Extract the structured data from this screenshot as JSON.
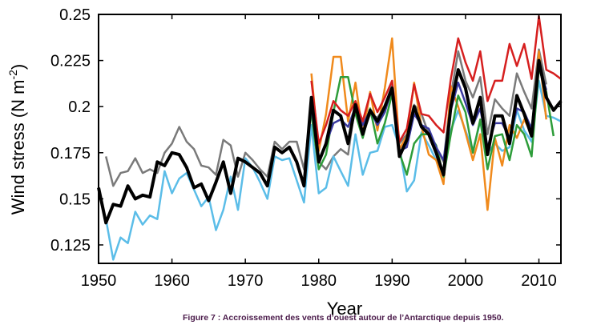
{
  "caption": "Figure 7 : Accroissement des vents d’ouest autour de l’Antarctique depuis 1950.",
  "chart_data": {
    "type": "line",
    "xlabel": "Year",
    "ylabel": "Wind stress (N m-2)",
    "ylabel_parts": {
      "main": "Wind stress (N m",
      "sup": "-2",
      "end": ")"
    },
    "xlim": [
      1950,
      2013
    ],
    "ylim": [
      0.115,
      0.25
    ],
    "xticks": [
      1950,
      1960,
      1970,
      1980,
      1990,
      2000,
      2010
    ],
    "yticks": [
      0.125,
      0.15,
      0.175,
      0.2,
      0.225,
      0.25
    ],
    "ytick_labels": [
      "0.125",
      "0.15",
      "0.175",
      "0.2",
      "0.225",
      "0.25"
    ],
    "grid": false,
    "legend": "none",
    "series": [
      {
        "color": "#7a7a7a",
        "width": 2.5,
        "x": [
          1951,
          1952,
          1953,
          1954,
          1955,
          1956,
          1957,
          1958,
          1959,
          1960,
          1961,
          1962,
          1963,
          1964,
          1965,
          1966,
          1967,
          1968,
          1969,
          1970,
          1971,
          1972,
          1973,
          1974,
          1975,
          1976,
          1977,
          1978,
          1979,
          1980,
          1981,
          1982,
          1983,
          1984,
          1985,
          1986,
          1987,
          1988,
          1989,
          1990,
          1991,
          1992,
          1993,
          1994,
          1995,
          1996,
          1997,
          1998,
          1999,
          2000,
          2001,
          2002,
          2003,
          2004,
          2005,
          2006,
          2007,
          2008,
          2009,
          2010,
          2011
        ],
        "y": [
          0.173,
          0.157,
          0.164,
          0.165,
          0.172,
          0.164,
          0.166,
          0.164,
          0.175,
          0.18,
          0.189,
          0.181,
          0.177,
          0.168,
          0.167,
          0.163,
          0.182,
          0.179,
          0.162,
          0.175,
          0.171,
          0.166,
          0.162,
          0.181,
          0.177,
          0.181,
          0.181,
          0.166,
          0.201,
          0.17,
          0.166,
          0.173,
          0.177,
          0.174,
          0.202,
          0.185,
          0.196,
          0.194,
          0.2,
          0.212,
          0.18,
          0.185,
          0.201,
          0.196,
          0.185,
          0.178,
          0.17,
          0.206,
          0.23,
          0.214,
          0.205,
          0.216,
          0.185,
          0.204,
          0.199,
          0.195,
          0.218,
          0.208,
          0.199,
          0.231,
          0.212
        ]
      },
      {
        "color": "#5bbde8",
        "width": 2.5,
        "x": [
          1951,
          1952,
          1953,
          1954,
          1955,
          1956,
          1957,
          1958,
          1959,
          1960,
          1961,
          1962,
          1963,
          1964,
          1965,
          1966,
          1967,
          1968,
          1969,
          1970,
          1971,
          1972,
          1973,
          1974,
          1975,
          1976,
          1977,
          1978,
          1979,
          1980,
          1981,
          1982,
          1983,
          1984,
          1985,
          1986,
          1987,
          1988,
          1989,
          1990,
          1991,
          1992,
          1993,
          1994,
          1995,
          1996,
          1997,
          1998,
          1999,
          2000,
          2001,
          2002,
          2003,
          2004,
          2005,
          2006,
          2007,
          2008,
          2009,
          2010,
          2011,
          2012,
          2013
        ],
        "y": [
          0.139,
          0.117,
          0.129,
          0.126,
          0.143,
          0.136,
          0.141,
          0.139,
          0.165,
          0.153,
          0.161,
          0.164,
          0.155,
          0.146,
          0.151,
          0.133,
          0.144,
          0.162,
          0.144,
          0.172,
          0.167,
          0.159,
          0.15,
          0.173,
          0.171,
          0.172,
          0.16,
          0.148,
          0.19,
          0.153,
          0.156,
          0.173,
          0.165,
          0.157,
          0.185,
          0.163,
          0.175,
          0.176,
          0.189,
          0.19,
          0.178,
          0.154,
          0.16,
          0.186,
          0.179,
          0.171,
          0.164,
          0.187,
          0.198,
          0.187,
          0.176,
          0.192,
          0.175,
          0.18,
          0.176,
          0.178,
          0.198,
          0.187,
          0.181,
          0.214,
          0.195,
          0.194,
          0.192
        ]
      },
      {
        "color": "#f08a1c",
        "width": 2.5,
        "x": [
          1979,
          1980,
          1981,
          1982,
          1983,
          1984,
          1985,
          1986,
          1987,
          1988,
          1989,
          1990,
          1991,
          1992,
          1993,
          1994,
          1995,
          1996,
          1997,
          1998,
          1999,
          2000,
          2001,
          2002,
          2003,
          2004,
          2005,
          2006,
          2007,
          2008,
          2009,
          2010,
          2011
        ],
        "y": [
          0.218,
          0.176,
          0.196,
          0.227,
          0.227,
          0.192,
          0.213,
          0.185,
          0.208,
          0.187,
          0.21,
          0.237,
          0.177,
          0.184,
          0.213,
          0.189,
          0.174,
          0.171,
          0.158,
          0.211,
          0.2,
          0.186,
          0.171,
          0.185,
          0.144,
          0.183,
          0.168,
          0.19,
          0.183,
          0.193,
          0.185,
          0.23,
          0.193
        ]
      },
      {
        "color": "#2e9d3a",
        "width": 2.5,
        "x": [
          1979,
          1980,
          1981,
          1982,
          1983,
          1984,
          1985,
          1986,
          1987,
          1988,
          1989,
          1990,
          1991,
          1992,
          1993,
          1994,
          1995,
          1996,
          1997,
          1998,
          1999,
          2000,
          2001,
          2002,
          2003,
          2004,
          2005,
          2006,
          2007,
          2008,
          2009,
          2010,
          2011,
          2012
        ],
        "y": [
          0.196,
          0.166,
          0.174,
          0.197,
          0.216,
          0.216,
          0.196,
          0.183,
          0.199,
          0.18,
          0.191,
          0.207,
          0.175,
          0.163,
          0.18,
          0.185,
          0.185,
          0.179,
          0.162,
          0.185,
          0.206,
          0.197,
          0.175,
          0.193,
          0.166,
          0.184,
          0.185,
          0.171,
          0.19,
          0.185,
          0.173,
          0.221,
          0.208,
          0.184
        ]
      },
      {
        "color": "#3a3aa0",
        "width": 2.5,
        "x": [
          1979,
          1980,
          1981,
          1982,
          1983,
          1984,
          1985,
          1986,
          1987,
          1988,
          1989,
          1990,
          1991,
          1992,
          1993,
          1994,
          1995,
          1996,
          1997,
          1998,
          1999,
          2000,
          2001,
          2002,
          2003,
          2004,
          2005,
          2006,
          2007,
          2008,
          2009,
          2010,
          2011
        ],
        "y": [
          0.2,
          0.17,
          0.18,
          0.191,
          0.193,
          0.189,
          0.2,
          0.19,
          0.198,
          0.19,
          0.197,
          0.21,
          0.176,
          0.178,
          0.196,
          0.19,
          0.188,
          0.178,
          0.171,
          0.198,
          0.213,
          0.202,
          0.19,
          0.199,
          0.178,
          0.191,
          0.191,
          0.183,
          0.199,
          0.197,
          0.188,
          0.223,
          0.209
        ]
      },
      {
        "color": "#d61f1f",
        "width": 2.5,
        "x": [
          1979,
          1980,
          1981,
          1982,
          1983,
          1984,
          1985,
          1986,
          1987,
          1988,
          1989,
          1990,
          1991,
          1992,
          1993,
          1994,
          1995,
          1996,
          1997,
          1998,
          1999,
          2000,
          2001,
          2002,
          2003,
          2004,
          2005,
          2006,
          2007,
          2008,
          2009,
          2010,
          2011,
          2012,
          2013
        ],
        "y": [
          0.214,
          0.18,
          0.19,
          0.203,
          0.198,
          0.195,
          0.203,
          0.192,
          0.207,
          0.197,
          0.205,
          0.214,
          0.181,
          0.188,
          0.212,
          0.196,
          0.195,
          0.19,
          0.186,
          0.215,
          0.237,
          0.224,
          0.214,
          0.23,
          0.203,
          0.214,
          0.214,
          0.234,
          0.222,
          0.234,
          0.215,
          0.249,
          0.22,
          0.218,
          0.215
        ]
      },
      {
        "color": "#000000",
        "width": 4,
        "x": [
          1950,
          1951,
          1952,
          1953,
          1954,
          1955,
          1956,
          1957,
          1958,
          1959,
          1960,
          1961,
          1962,
          1963,
          1964,
          1965,
          1966,
          1967,
          1968,
          1969,
          1970,
          1971,
          1972,
          1973,
          1974,
          1975,
          1976,
          1977,
          1978,
          1979,
          1980,
          1981,
          1982,
          1983,
          1984,
          1985,
          1986,
          1987,
          1988,
          1989,
          1990,
          1991,
          1992,
          1993,
          1994,
          1995,
          1996,
          1997,
          1998,
          1999,
          2000,
          2001,
          2002,
          2003,
          2004,
          2005,
          2006,
          2007,
          2008,
          2009,
          2010,
          2011,
          2012,
          2013
        ],
        "y": [
          0.156,
          0.137,
          0.147,
          0.146,
          0.157,
          0.15,
          0.152,
          0.151,
          0.17,
          0.168,
          0.175,
          0.174,
          0.167,
          0.156,
          0.158,
          0.149,
          0.159,
          0.17,
          0.153,
          0.172,
          0.17,
          0.167,
          0.164,
          0.157,
          0.178,
          0.175,
          0.178,
          0.17,
          0.157,
          0.205,
          0.17,
          0.18,
          0.198,
          0.195,
          0.18,
          0.201,
          0.185,
          0.198,
          0.192,
          0.2,
          0.21,
          0.173,
          0.182,
          0.2,
          0.189,
          0.185,
          0.175,
          0.163,
          0.2,
          0.22,
          0.21,
          0.191,
          0.205,
          0.174,
          0.195,
          0.195,
          0.18,
          0.206,
          0.196,
          0.184,
          0.225,
          0.205,
          0.198,
          0.203
        ]
      }
    ]
  }
}
